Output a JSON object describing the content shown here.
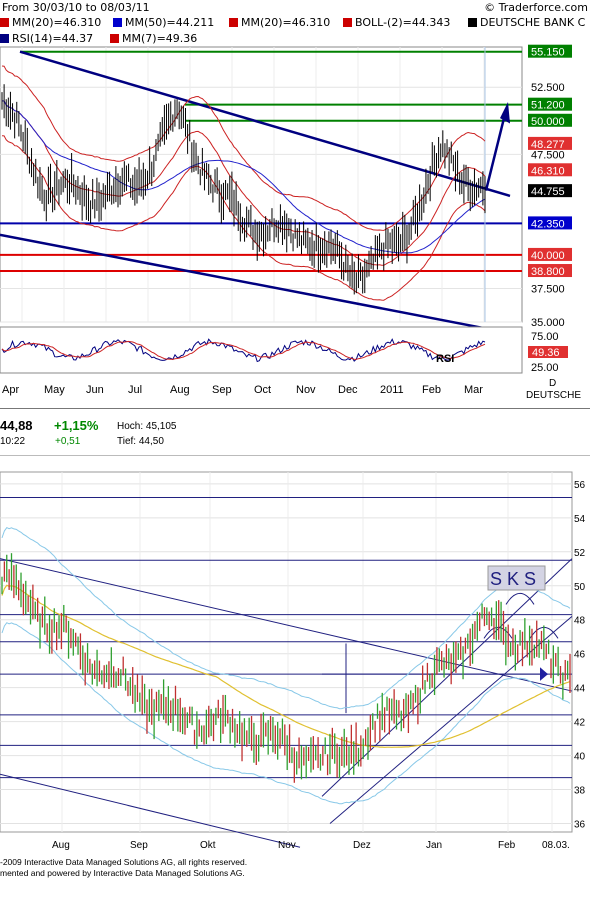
{
  "header": {
    "date_range": "From 30/03/10 to 08/03/11",
    "copyright": "© Traderforce.com"
  },
  "legend": [
    {
      "label": "MM(20)=46.310",
      "color": "#cc0000"
    },
    {
      "label": "MM(50)=44.211",
      "color": "#0000cc"
    },
    {
      "label": "MM(20)=46.310",
      "color": "#cc0000"
    },
    {
      "label": "BOLL-(2)=44.343",
      "color": "#cc0000"
    },
    {
      "label": "DEUTSCHE BANK C",
      "color": "#000000"
    },
    {
      "label": "RSI(14)=44.37",
      "color": "#000080"
    },
    {
      "label": "MM(7)=49.36",
      "color": "#cc0000"
    }
  ],
  "top_chart": {
    "price_ticks": [
      "52.500",
      "47.500",
      "37.500",
      "35.000"
    ],
    "level_boxes": [
      {
        "label": "55.150",
        "value": 55.15,
        "color": "#008000"
      },
      {
        "label": "51.200",
        "value": 51.2,
        "color": "#008000"
      },
      {
        "label": "50.000",
        "value": 50.0,
        "color": "#008000"
      },
      {
        "label": "48.277",
        "value": 48.277,
        "color": "#e03030"
      },
      {
        "label": "46.310",
        "value": 46.31,
        "color": "#e03030"
      },
      {
        "label": "44.755",
        "value": 44.755,
        "color": "#000000"
      },
      {
        "label": "42.350",
        "value": 42.35,
        "color": "#0000cc"
      },
      {
        "label": "40.000",
        "value": 40.0,
        "color": "#e03030"
      },
      {
        "label": "38.800",
        "value": 38.8,
        "color": "#e03030"
      }
    ],
    "months": [
      "Apr",
      "May",
      "Jun",
      "Jul",
      "Aug",
      "Sep",
      "Oct",
      "Nov",
      "Dec",
      "2011",
      "Feb",
      "Mar"
    ],
    "rsi_label": "RSI",
    "rsi_ticks": [
      "75.00",
      "25.00"
    ],
    "rsi_value_box": "49.36",
    "right_labels": [
      "D",
      "DEUTSCHE"
    ]
  },
  "quote": {
    "last": "44,88",
    "time": "10:22",
    "change_pct": "+1,15%",
    "change_abs": "+0,51",
    "high_label": "Hoch: 45,105",
    "low_label": "Tief: 44,50"
  },
  "bottom_chart": {
    "y_ticks": [
      "56",
      "54",
      "52",
      "50",
      "48",
      "46",
      "44",
      "42",
      "40",
      "38",
      "36"
    ],
    "months": [
      "Aug",
      "Sep",
      "Okt",
      "Nov",
      "Dez",
      "Jan",
      "Feb",
      "08.03."
    ],
    "annotation": "S K S",
    "footer_1": "-2009 Interactive Data Managed Solutions AG, all rights reserved.",
    "footer_2": "mented and powered by Interactive Data Managed Solutions AG."
  },
  "chart_data": [
    {
      "type": "line",
      "title": "DEUTSCHE BANK",
      "x": [
        "Apr",
        "May",
        "Jun",
        "Jul",
        "Aug",
        "Sep",
        "Oct",
        "Nov",
        "Dec",
        "2011",
        "Feb",
        "Mar"
      ],
      "series": [
        {
          "name": "DEUTSCHE BANK",
          "values": [
            51.5,
            45.0,
            44.5,
            45.0,
            50.5,
            44.0,
            42.0,
            41.5,
            38.5,
            40.5,
            47.5,
            44.8
          ]
        }
      ],
      "ylim": [
        35,
        55.5
      ]
    },
    {
      "type": "line",
      "x": [
        "Aug",
        "Sep",
        "Okt",
        "Nov",
        "Dez",
        "Jan",
        "Feb",
        "08.03."
      ],
      "series": [
        {
          "values": [
            50.5,
            46.0,
            42.5,
            41.5,
            39.5,
            43.0,
            48.0,
            44.9
          ]
        }
      ],
      "ylim": [
        36,
        56
      ]
    }
  ]
}
